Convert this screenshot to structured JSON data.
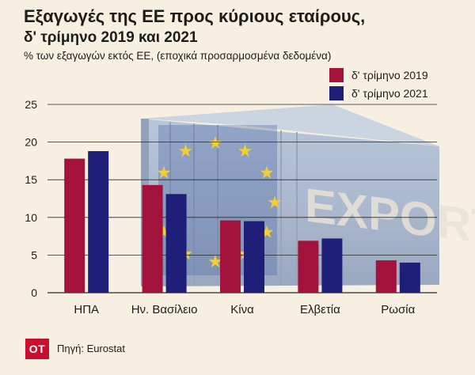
{
  "logo_text": "OT",
  "source": "Πηγή: Eurostat",
  "watermark_text": "EXPORT",
  "chart_data": {
    "type": "bar",
    "title": "Εξαγωγές της ΕΕ προς κύριους εταίρους,",
    "subtitle": "δ' τρίμηνο 2019 και 2021",
    "ylabel": "% των εξαγωγών εκτός ΕΕ, (εποχικά προσαρμοσμένα δεδομένα)",
    "categories": [
      "ΗΠΑ",
      "Ην. Βασίλειο",
      "Κίνα",
      "Ελβετία",
      "Ρωσία"
    ],
    "series": [
      {
        "name": "δ' τρίμηνο 2019",
        "values": [
          17.8,
          14.3,
          9.6,
          6.9,
          4.3
        ],
        "color": "#a3123a"
      },
      {
        "name": "δ' τρίμηνο 2021",
        "values": [
          18.8,
          13.1,
          9.5,
          7.2,
          4.0
        ],
        "color": "#1f1f7a"
      }
    ],
    "ylim": [
      0,
      25
    ],
    "yticks": [
      0,
      5,
      10,
      15,
      20,
      25
    ],
    "grid": true,
    "legend_position": "top-right"
  }
}
